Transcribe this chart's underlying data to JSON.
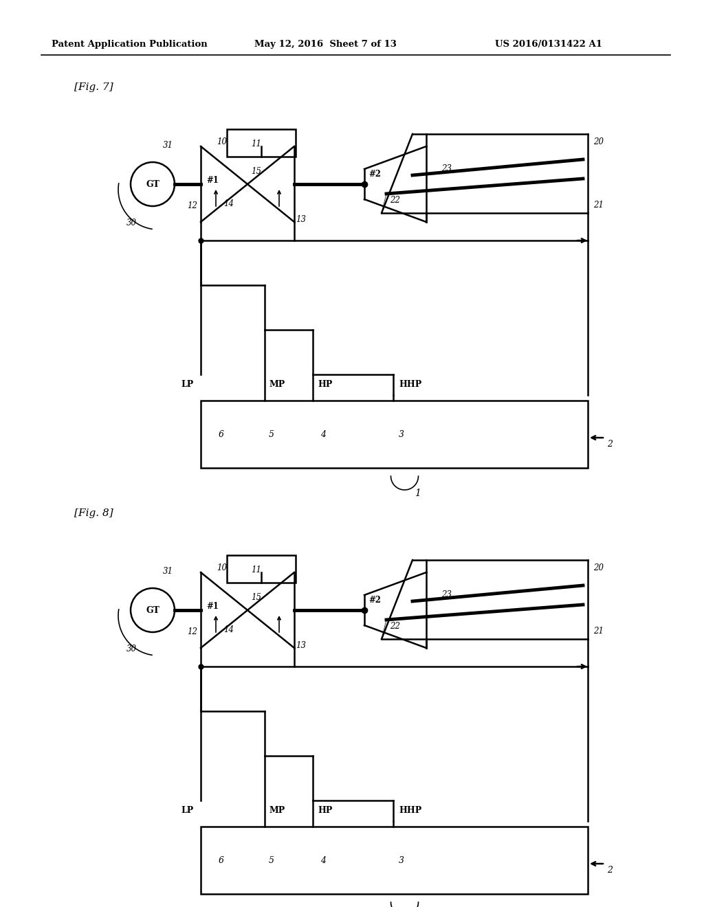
{
  "header_left": "Patent Application Publication",
  "header_mid": "May 12, 2016  Sheet 7 of 13",
  "header_right": "US 2016/0131422 A1",
  "fig7_label": "[Fig. 7]",
  "fig8_label": "[Fig. 8]",
  "bg_color": "#ffffff",
  "line_color": "#000000"
}
